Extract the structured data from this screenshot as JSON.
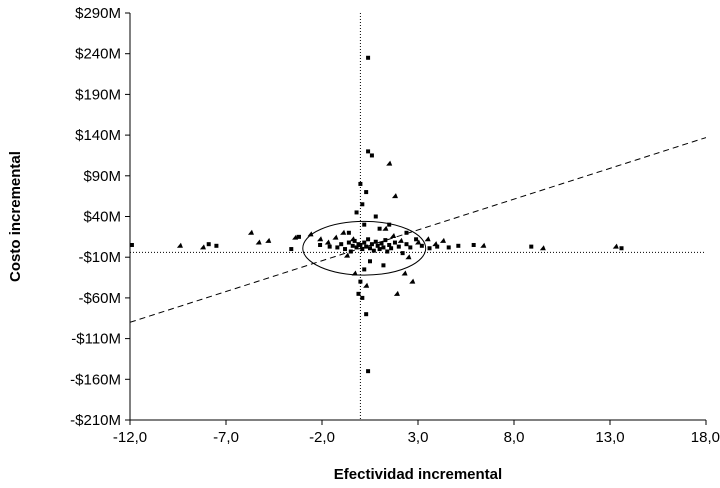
{
  "chart_data": {
    "type": "scatter",
    "title": "",
    "xlabel": "Efectividad incremental",
    "ylabel": "Costo incremental",
    "xlim": [
      -12,
      18
    ],
    "ylim": [
      -210,
      290
    ],
    "xticks": [
      -12,
      -7,
      -2,
      3,
      8,
      13,
      18
    ],
    "xtick_labels": [
      "-12,0",
      "-7,0",
      "-2,0",
      "3,0",
      "8,0",
      "13,0",
      "18,0"
    ],
    "yticks": [
      290,
      240,
      190,
      140,
      90,
      40,
      -10,
      -60,
      -110,
      -160,
      -210
    ],
    "ytick_labels": [
      "$290M",
      "$240M",
      "$190M",
      "$140M",
      "$90M",
      "$40M",
      "-$10M",
      "-$60M",
      "-$110M",
      "-$160M",
      "-$210M"
    ],
    "grid": false,
    "reference_lines": {
      "vertical_x": 0,
      "horizontal_y": -4,
      "style": "dotted"
    },
    "threshold_line": {
      "style": "dashed",
      "points": [
        [
          -12,
          -90
        ],
        [
          18,
          137
        ]
      ]
    },
    "confidence_ellipse": {
      "center": [
        0.2,
        1
      ],
      "semi_axis_x": 3.2,
      "semi_axis_y": 33
    },
    "series": [
      {
        "marker": "square",
        "points": [
          [
            -11.9,
            5
          ],
          [
            -7.9,
            6
          ],
          [
            -7.5,
            4
          ],
          [
            -3.6,
            0
          ],
          [
            -3.2,
            15
          ],
          [
            -2.1,
            5
          ],
          [
            -1.6,
            3
          ],
          [
            -1.2,
            2
          ],
          [
            -1.0,
            6
          ],
          [
            -0.8,
            0
          ],
          [
            -0.6,
            8
          ],
          [
            -0.5,
            -3
          ],
          [
            -0.4,
            4
          ],
          [
            -0.3,
            10
          ],
          [
            -0.2,
            2
          ],
          [
            -0.1,
            6
          ],
          [
            0.0,
            5
          ],
          [
            0.1,
            0
          ],
          [
            0.2,
            8
          ],
          [
            0.3,
            3
          ],
          [
            0.4,
            12
          ],
          [
            0.5,
            1
          ],
          [
            0.6,
            6
          ],
          [
            0.7,
            -2
          ],
          [
            0.8,
            9
          ],
          [
            0.9,
            4
          ],
          [
            1.0,
            0
          ],
          [
            1.1,
            7
          ],
          [
            1.2,
            2
          ],
          [
            1.3,
            11
          ],
          [
            1.4,
            -3
          ],
          [
            1.5,
            5
          ],
          [
            1.6,
            1
          ],
          [
            1.8,
            8
          ],
          [
            2.0,
            3
          ],
          [
            2.2,
            -5
          ],
          [
            2.4,
            6
          ],
          [
            2.6,
            2
          ],
          [
            2.9,
            12
          ],
          [
            3.2,
            4
          ],
          [
            3.6,
            1
          ],
          [
            4.0,
            3
          ],
          [
            4.6,
            2
          ],
          [
            5.1,
            4
          ],
          [
            5.9,
            5
          ],
          [
            8.9,
            3
          ],
          [
            13.6,
            1
          ],
          [
            0.4,
            120
          ],
          [
            0.6,
            115
          ],
          [
            0.0,
            80
          ],
          [
            0.3,
            70
          ],
          [
            0.1,
            55
          ],
          [
            -0.2,
            45
          ],
          [
            0.8,
            40
          ],
          [
            0.2,
            30
          ],
          [
            1.0,
            25
          ],
          [
            0.5,
            -15
          ],
          [
            0.2,
            -25
          ],
          [
            0.0,
            -40
          ],
          [
            -0.1,
            -55
          ],
          [
            0.1,
            -60
          ],
          [
            0.4,
            -150
          ],
          [
            0.4,
            235
          ],
          [
            1.5,
            30
          ],
          [
            2.4,
            20
          ],
          [
            -0.6,
            20
          ],
          [
            1.2,
            -20
          ],
          [
            0.3,
            -80
          ]
        ]
      },
      {
        "marker": "triangle",
        "points": [
          [
            -5.7,
            20
          ],
          [
            -5.3,
            8
          ],
          [
            -4.8,
            10
          ],
          [
            -3.4,
            14
          ],
          [
            -2.6,
            18
          ],
          [
            -2.1,
            12
          ],
          [
            -1.7,
            8
          ],
          [
            -1.3,
            14
          ],
          [
            -0.9,
            20
          ],
          [
            -0.7,
            -8
          ],
          [
            -0.4,
            12
          ],
          [
            1.3,
            25
          ],
          [
            1.7,
            16
          ],
          [
            2.1,
            10
          ],
          [
            2.5,
            -10
          ],
          [
            3.0,
            8
          ],
          [
            3.5,
            12
          ],
          [
            3.9,
            6
          ],
          [
            4.3,
            10
          ],
          [
            6.4,
            4
          ],
          [
            9.5,
            1
          ],
          [
            13.3,
            3
          ],
          [
            -9.4,
            4
          ],
          [
            -8.2,
            2
          ],
          [
            1.8,
            65
          ],
          [
            1.5,
            105
          ],
          [
            2.3,
            -30
          ],
          [
            0.3,
            -45
          ],
          [
            1.9,
            -55
          ],
          [
            2.7,
            -40
          ],
          [
            -0.3,
            -30
          ]
        ]
      }
    ]
  }
}
